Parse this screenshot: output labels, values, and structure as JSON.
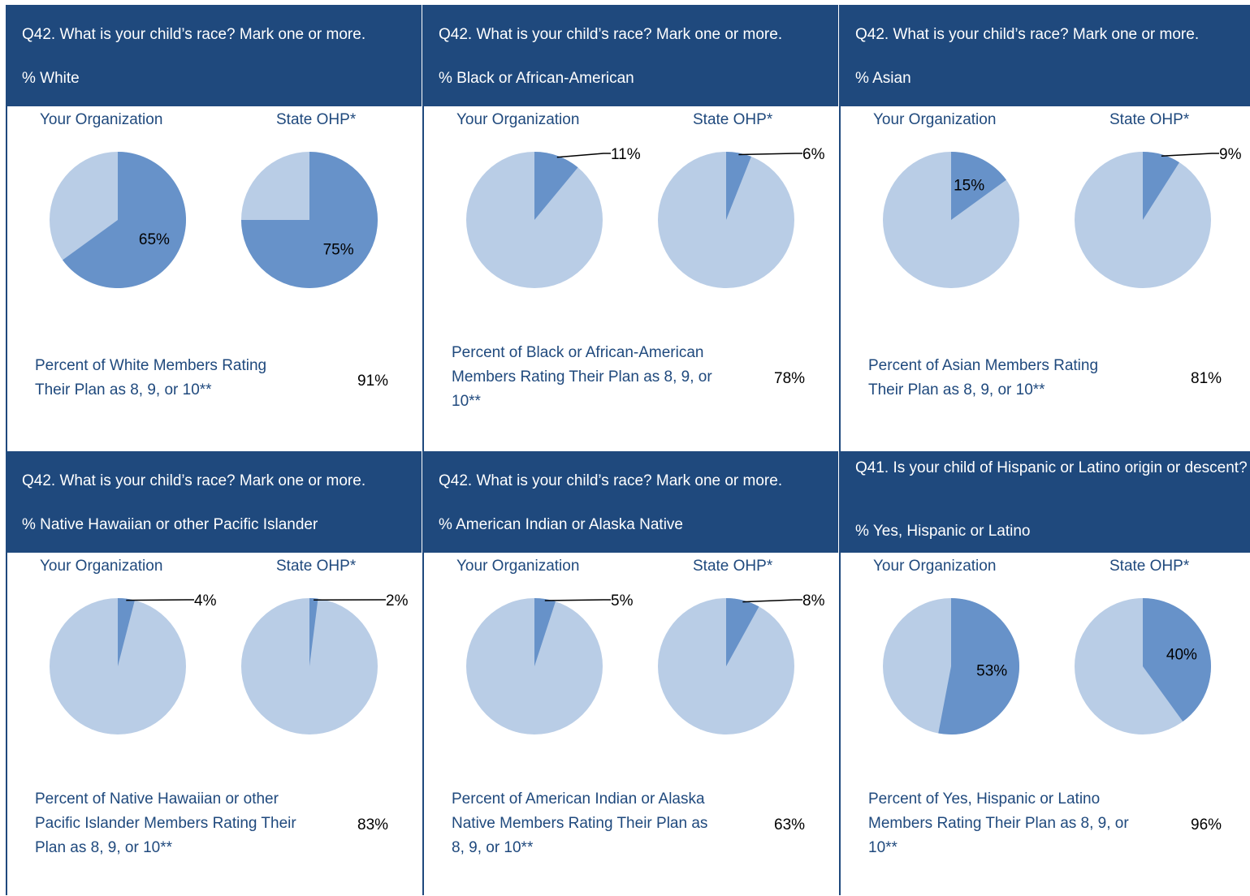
{
  "panels": [
    {
      "question": "Q42. What is your child’s race? Mark one or more.",
      "subtitle": "% White",
      "org_label": "Your Organization",
      "state_label": "State OHP*",
      "rating_text": "Percent of White Members Rating Their Plan as 8, 9, or 10**",
      "rating_value": "91%"
    },
    {
      "question": "Q42. What is your child’s race? Mark one or more.",
      "subtitle": "% Black or African-American",
      "org_label": "Your Organization",
      "state_label": "State OHP*",
      "rating_text": "Percent of Black or African-American Members Rating Their Plan as 8, 9, or 10**",
      "rating_value": "78%"
    },
    {
      "question": "Q42. What is your child’s race? Mark one or more.",
      "subtitle": "% Asian",
      "org_label": "Your Organization",
      "state_label": "State OHP*",
      "rating_text": "Percent of Asian Members Rating Their Plan as 8, 9, or 10**",
      "rating_value": "81%"
    },
    {
      "question": "Q42. What is your child’s race? Mark one or more.",
      "subtitle": "% Native Hawaiian or other Pacific Islander",
      "org_label": "Your Organization",
      "state_label": "State OHP*",
      "rating_text": "Percent of Native Hawaiian or other Pacific Islander Members Rating Their Plan as 8, 9, or 10**",
      "rating_value": "83%"
    },
    {
      "question": "Q42. What is your child’s race? Mark one or more.",
      "subtitle": "% American Indian or Alaska Native",
      "org_label": "Your Organization",
      "state_label": "State OHP*",
      "rating_text": "Percent of American Indian or Alaska Native Members Rating Their Plan as 8, 9, or 10**",
      "rating_value": "63%"
    },
    {
      "question": "Q41. Is your child of Hispanic or Latino origin or descent?",
      "subtitle": "% Yes, Hispanic or Latino",
      "org_label": "Your Organization",
      "state_label": "State OHP*",
      "rating_text": "Percent of Yes, Hispanic or Latino Members Rating Their Plan as 8, 9, or 10**",
      "rating_value": "96%"
    }
  ],
  "colors": {
    "header_bg": "#1f497d",
    "highlight": "#6792c9",
    "remainder": "#b9cde6",
    "label_text": "#1f497d"
  },
  "chart_data": [
    {
      "type": "pie",
      "chart": "White",
      "slices": [
        {
          "name": "Your Organization",
          "value": 65,
          "label": "65%"
        },
        {
          "name": "State OHP*",
          "value": 75,
          "label": "75%"
        }
      ]
    },
    {
      "type": "pie",
      "chart": "Black or African-American",
      "slices": [
        {
          "name": "Your Organization",
          "value": 11,
          "label": "11%"
        },
        {
          "name": "State OHP*",
          "value": 6,
          "label": "6%"
        }
      ]
    },
    {
      "type": "pie",
      "chart": "Asian",
      "slices": [
        {
          "name": "Your Organization",
          "value": 15,
          "label": "15%"
        },
        {
          "name": "State OHP*",
          "value": 9,
          "label": "9%"
        }
      ]
    },
    {
      "type": "pie",
      "chart": "Native Hawaiian or other Pacific Islander",
      "slices": [
        {
          "name": "Your Organization",
          "value": 4,
          "label": "4%"
        },
        {
          "name": "State OHP*",
          "value": 2,
          "label": "2%"
        }
      ]
    },
    {
      "type": "pie",
      "chart": "American Indian or Alaska Native",
      "slices": [
        {
          "name": "Your Organization",
          "value": 5,
          "label": "5%"
        },
        {
          "name": "State OHP*",
          "value": 8,
          "label": "8%"
        }
      ]
    },
    {
      "type": "pie",
      "chart": "Yes, Hispanic or Latino",
      "slices": [
        {
          "name": "Your Organization",
          "value": 53,
          "label": "53%"
        },
        {
          "name": "State OHP*",
          "value": 40,
          "label": "40%"
        }
      ]
    }
  ]
}
